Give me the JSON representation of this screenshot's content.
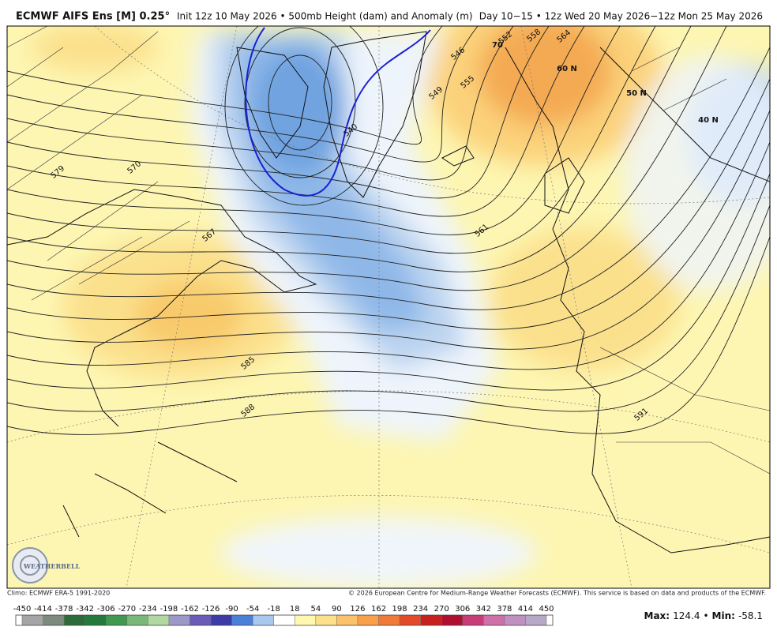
{
  "header": {
    "title": "ECMWF AIFS Ens [M] 0.25°",
    "subtitle": "Init 12z 10 May 2026 • 500mb Height (dam) and Anomaly (m)",
    "valid": "Day 10−15 • 12z Wed 20 May 2026−12z Mon 25 May 2026"
  },
  "map": {
    "contour_labels": [
      "579",
      "570",
      "567",
      "585",
      "588",
      "591",
      "561",
      "555",
      "549",
      "540",
      "546",
      "552",
      "558",
      "564"
    ],
    "lat_labels": [
      "70",
      "60 N",
      "50 N",
      "40 N"
    ],
    "logo": "WEATHERBELL"
  },
  "footer": {
    "climo": "Climo: ECMWF ERA-5 1991-2020",
    "copyright": "© 2026 European Centre for Medium-Range Weather Forecasts (ECMWF). This service is based on data and products of the ECMWF."
  },
  "colorbar": {
    "ticks": [
      -450,
      -414,
      -378,
      -342,
      -306,
      -270,
      -234,
      -198,
      -162,
      -126,
      -90,
      -54,
      -18,
      18,
      54,
      90,
      126,
      162,
      198,
      234,
      270,
      306,
      342,
      378,
      414,
      450
    ],
    "colors": [
      "#a5a5a5",
      "#7c8b7e",
      "#2e6b3b",
      "#237a3a",
      "#3f9a50",
      "#78b878",
      "#b0d8a0",
      "#9c98c8",
      "#6a5cb8",
      "#3c3ca8",
      "#4b80d8",
      "#a8c8f0",
      "#ffffff",
      "#fff8b0",
      "#fde08a",
      "#fcc26a",
      "#f9a04c",
      "#f17a38",
      "#e34a2a",
      "#c8201e",
      "#b01030",
      "#c83c78",
      "#d070a8",
      "#c090c0",
      "#b8a8c8"
    ]
  },
  "stats": {
    "max_label": "Max:",
    "max": 124.4,
    "separator": "•",
    "min_label": "Min:",
    "min": -58.1
  }
}
